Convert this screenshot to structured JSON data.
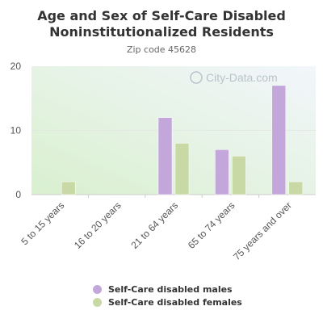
{
  "chart_data": {
    "type": "bar",
    "title": "Age and Sex of Self-Care Disabled Noninstitutionalized Residents",
    "subtitle": "Zip code 45628",
    "watermark": "City-Data.com",
    "categories": [
      "5 to 15 years",
      "16 to 20 years",
      "21 to 64 years",
      "65 to 74 years",
      "75 years and over"
    ],
    "series": [
      {
        "name": "Self-Care disabled males",
        "color": "#c3a7db",
        "values": [
          0,
          0,
          12,
          7,
          17
        ]
      },
      {
        "name": "Self-Care disabled females",
        "color": "#c8d9a6",
        "values": [
          2,
          0,
          8,
          6,
          2
        ]
      }
    ],
    "yticks": [
      0,
      10,
      20
    ],
    "ylim": [
      0,
      20
    ],
    "legend_position": "bottom",
    "background_gradient": [
      "#d9f0cf",
      "#f2f6fb"
    ]
  }
}
